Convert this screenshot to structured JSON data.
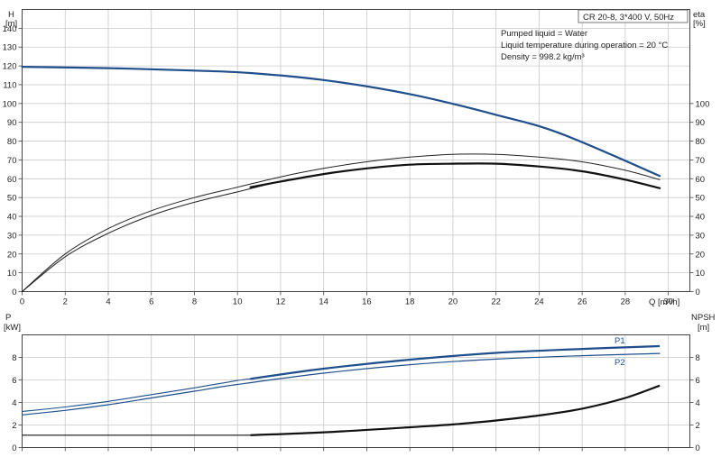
{
  "chart_data": [
    {
      "type": "line",
      "title": "CR 20-8, 3*400 V, 50Hz",
      "annotations": [
        "Pumped liquid = Water",
        "Liquid temperature during operation = 20 °C",
        "Density = 998.2 kg/m³"
      ],
      "left_axis": {
        "label": [
          "H",
          "[m]"
        ],
        "min": 0,
        "max": 150,
        "ticks": [
          0,
          10,
          20,
          30,
          40,
          50,
          60,
          70,
          80,
          90,
          100,
          110,
          120,
          130,
          140
        ]
      },
      "right_axis": {
        "label": [
          "eta",
          "[%]"
        ],
        "min": 0,
        "max": 150,
        "ticks": [
          0,
          10,
          20,
          30,
          40,
          50,
          60,
          70,
          80,
          90,
          100
        ]
      },
      "x_axis": {
        "label": "Q [m³/h]",
        "min": 0,
        "max": 31,
        "ticks": [
          0,
          2,
          4,
          6,
          8,
          10,
          12,
          14,
          16,
          18,
          20,
          22,
          24,
          26,
          28,
          30
        ]
      },
      "grid": true,
      "series": [
        {
          "id": "head",
          "color": "#1f4e8c",
          "width": 2.2,
          "axis": "left",
          "x": [
            0,
            4,
            8,
            10.6,
            14,
            18,
            22,
            25,
            29.6
          ],
          "y": [
            119.5,
            118.8,
            117.5,
            116.2,
            112.5,
            105,
            94,
            84,
            61.5
          ],
          "y_dash_until_x": 10.6
        },
        {
          "id": "eta-upper",
          "color": "#222222",
          "width": 1,
          "axis": "right",
          "x": [
            0,
            2,
            4,
            6,
            8,
            10,
            12,
            14,
            16,
            18,
            20,
            22,
            24,
            26,
            28,
            29.6
          ],
          "y": [
            0,
            20,
            33.5,
            43,
            50,
            55.5,
            61,
            65.5,
            69,
            71.5,
            73,
            73,
            71.5,
            69,
            64.5,
            59.5
          ]
        },
        {
          "id": "eta-lower",
          "color": "#222222",
          "width": 1,
          "axis": "right",
          "x": [
            0,
            2,
            4,
            6,
            8,
            10,
            12,
            14,
            16,
            18,
            20,
            22,
            24,
            26,
            28,
            29.6
          ],
          "y": [
            0,
            18.5,
            31,
            40.5,
            47.5,
            53,
            58.5,
            62.5,
            65.5,
            67.5,
            68,
            68,
            66.5,
            64,
            59.5,
            55
          ]
        },
        {
          "id": "eta-duty",
          "color": "#111111",
          "width": 2.2,
          "axis": "right",
          "x": [
            10.6,
            12,
            14,
            16,
            18,
            20,
            22,
            24,
            26,
            28,
            29.6
          ],
          "y": [
            55.5,
            58.5,
            62.5,
            65.5,
            67.5,
            68,
            68,
            66.5,
            64,
            59.5,
            55
          ]
        }
      ]
    },
    {
      "type": "line",
      "left_axis": {
        "label": [
          "P",
          "[kW]"
        ],
        "min": 0,
        "max": 10,
        "ticks": [
          0,
          2,
          4,
          6,
          8
        ]
      },
      "right_axis": {
        "label": [
          "NPSH",
          "[m]"
        ],
        "min": 0,
        "max": 10,
        "ticks": [
          0,
          2,
          4,
          6,
          8
        ]
      },
      "x_axis": {
        "min": 0,
        "max": 31,
        "ticks": [
          0,
          2,
          4,
          6,
          8,
          10,
          12,
          14,
          16,
          18,
          20,
          22,
          24,
          26,
          28,
          30
        ]
      },
      "grid": true,
      "series": [
        {
          "name": "P1",
          "id": "p1",
          "color": "#1f4e8c",
          "x": [
            0,
            2,
            4,
            6,
            8,
            10,
            10.6,
            14,
            18,
            22,
            26,
            29.6
          ],
          "y": [
            3.2,
            3.6,
            4.1,
            4.7,
            5.3,
            5.95,
            6.1,
            7.0,
            7.8,
            8.4,
            8.75,
            9.0
          ],
          "thick_from_x": 10.6
        },
        {
          "name": "P2",
          "id": "p2",
          "color": "#1f4e8c",
          "x": [
            0,
            2,
            4,
            6,
            8,
            10,
            14,
            18,
            22,
            26,
            29.6
          ],
          "y": [
            2.9,
            3.3,
            3.8,
            4.4,
            5.0,
            5.6,
            6.6,
            7.35,
            7.85,
            8.15,
            8.35
          ]
        },
        {
          "id": "npsh",
          "color": "#111111",
          "x": [
            0,
            4,
            8,
            10.6,
            14,
            18,
            20,
            22,
            24,
            26,
            28,
            29.6
          ],
          "y": [
            1.1,
            1.1,
            1.1,
            1.1,
            1.35,
            1.8,
            2.05,
            2.4,
            2.85,
            3.45,
            4.4,
            5.5
          ],
          "thick_from_x": 10.6
        }
      ]
    }
  ]
}
